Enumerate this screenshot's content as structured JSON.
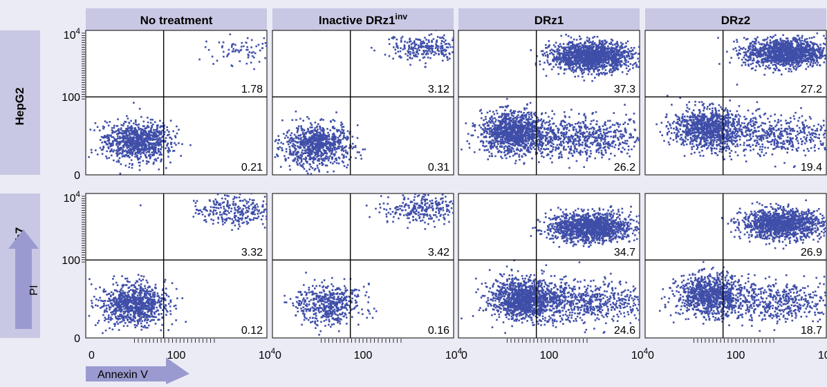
{
  "colors": {
    "dots": "#3f4ea8",
    "header_band": "#c8c8e4",
    "background": "#ebebf5",
    "arrow": "#9a9ad0"
  },
  "columns": [
    {
      "label": "No treatment",
      "sup": ""
    },
    {
      "label": "Inactive DRz1",
      "sup": "inv"
    },
    {
      "label": "DRz1",
      "sup": ""
    },
    {
      "label": "DRz2",
      "sup": ""
    }
  ],
  "rows": [
    {
      "label": "HepG2"
    },
    {
      "label": "Huh7"
    }
  ],
  "y_ticks": [
    {
      "base": "10",
      "sup": "4"
    },
    {
      "base": "100",
      "sup": ""
    },
    {
      "base": "0",
      "sup": ""
    }
  ],
  "x_ticks": [
    {
      "base": "0",
      "sup": ""
    },
    {
      "base": "100",
      "sup": ""
    },
    {
      "base": "10",
      "sup": "4"
    }
  ],
  "axis_labels": {
    "x": "Annexin V",
    "y": "PI"
  },
  "chart_data": {
    "type": "scatter",
    "x_label": "Annexin V",
    "y_label": "PI",
    "x_ticks": [
      "0",
      "100",
      "10^4"
    ],
    "y_ticks": [
      "0",
      "100",
      "10^4"
    ],
    "scale": "log",
    "panels": [
      {
        "row": "HepG2",
        "column": "No treatment",
        "upper_right_percent": "1.78",
        "lower_right_percent": "0.21",
        "clusters": [
          {
            "x": 12,
            "y": 8,
            "count": 900
          },
          {
            "x": 3000,
            "y": 3000,
            "count": 80
          }
        ]
      },
      {
        "row": "HepG2",
        "column": "Inactive DRz1inv",
        "upper_right_percent": "3.12",
        "lower_right_percent": "0.31",
        "clusters": [
          {
            "x": 8,
            "y": 6,
            "count": 850
          },
          {
            "x": 2500,
            "y": 3500,
            "count": 260
          }
        ]
      },
      {
        "row": "HepG2",
        "column": "DRz1",
        "upper_right_percent": "37.3",
        "lower_right_percent": "26.2",
        "clusters": [
          {
            "x": 15,
            "y": 15,
            "count": 1100
          },
          {
            "x": 800,
            "y": 2000,
            "count": 1500
          },
          {
            "x": 500,
            "y": 10,
            "count": 700
          }
        ]
      },
      {
        "row": "HepG2",
        "column": "DRz2",
        "upper_right_percent": "27.2",
        "lower_right_percent": "19.4",
        "clusters": [
          {
            "x": 20,
            "y": 20,
            "count": 900
          },
          {
            "x": 1200,
            "y": 2500,
            "count": 1300
          },
          {
            "x": 600,
            "y": 12,
            "count": 550
          }
        ]
      },
      {
        "row": "Huh7",
        "column": "No treatment",
        "upper_right_percent": "3.32",
        "lower_right_percent": "0.12",
        "clusters": [
          {
            "x": 10,
            "y": 8,
            "count": 900
          },
          {
            "x": 2000,
            "y": 3500,
            "count": 280
          }
        ]
      },
      {
        "row": "Huh7",
        "column": "Inactive DRz1inv",
        "upper_right_percent": "3.42",
        "lower_right_percent": "0.16",
        "clusters": [
          {
            "x": 15,
            "y": 8,
            "count": 500
          },
          {
            "x": 2000,
            "y": 4000,
            "count": 260
          }
        ]
      },
      {
        "row": "Huh7",
        "column": "DRz1",
        "upper_right_percent": "34.7",
        "lower_right_percent": "24.6",
        "clusters": [
          {
            "x": 25,
            "y": 12,
            "count": 1100
          },
          {
            "x": 800,
            "y": 1200,
            "count": 1400
          },
          {
            "x": 500,
            "y": 10,
            "count": 700
          }
        ]
      },
      {
        "row": "Huh7",
        "column": "DRz2",
        "upper_right_percent": "26.9",
        "lower_right_percent": "18.7",
        "clusters": [
          {
            "x": 25,
            "y": 15,
            "count": 900
          },
          {
            "x": 1000,
            "y": 1500,
            "count": 1300
          },
          {
            "x": 600,
            "y": 10,
            "count": 550
          }
        ]
      }
    ]
  }
}
